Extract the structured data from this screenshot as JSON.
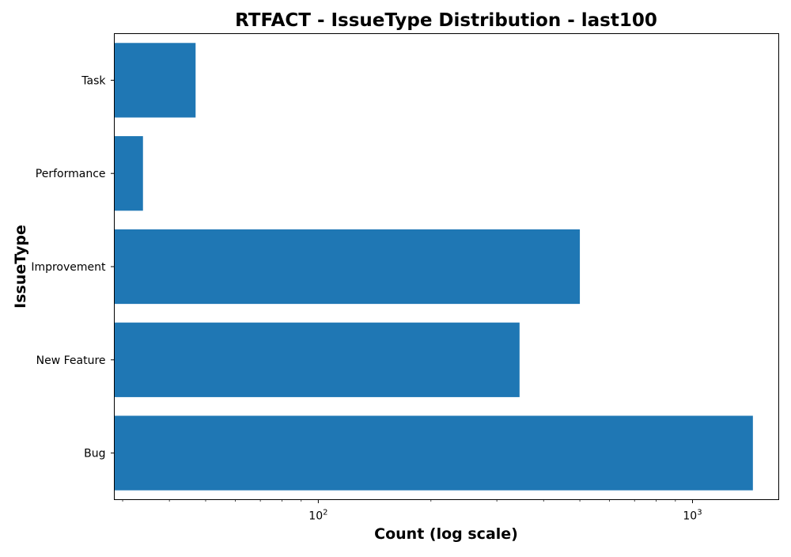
{
  "chart_data": {
    "type": "bar",
    "orientation": "horizontal",
    "title": "RTFACT - IssueType Distribution - last100",
    "xlabel": "Count (log scale)",
    "ylabel": "IssueType",
    "x_scale": "log",
    "xlim": [
      28.5,
      1700
    ],
    "x_ticks": [
      {
        "value": 100,
        "base": "10",
        "exp": "2"
      },
      {
        "value": 1000,
        "base": "10",
        "exp": "3"
      }
    ],
    "categories": [
      "Bug",
      "New Feature",
      "Improvement",
      "Performance",
      "Task"
    ],
    "values": [
      1450,
      345,
      500,
      34,
      47
    ],
    "bar_color": "#1f77b4",
    "grid": false,
    "legend": false
  }
}
